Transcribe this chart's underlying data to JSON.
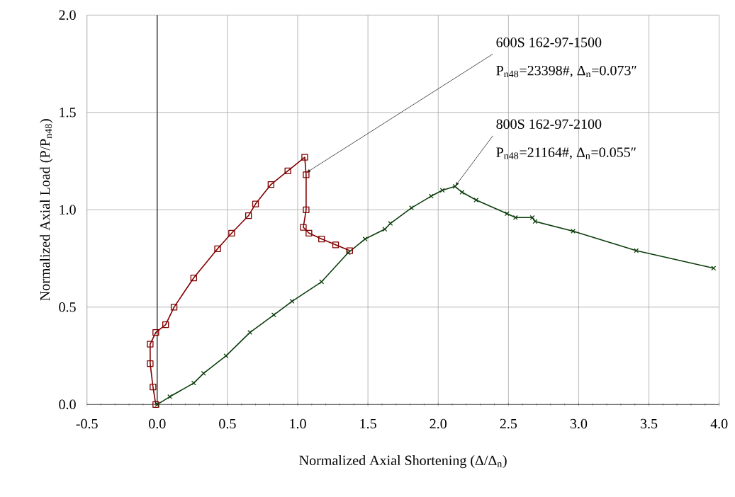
{
  "chart_data": {
    "type": "line",
    "xlabel": "Normalized Axial Shortening (Δ/Δ$_{n}$)",
    "ylabel": "Normalized Axial Load (P/P$_{n48}$)",
    "xlim": [
      -0.5,
      4.0
    ],
    "ylim": [
      0,
      2.0
    ],
    "xticks": [
      {
        "value": -0.5,
        "label": "-0.5"
      },
      {
        "value": 0,
        "label": "0.0"
      },
      {
        "value": 0.5,
        "label": "0.5"
      },
      {
        "value": 1.0,
        "label": "1.0"
      },
      {
        "value": 1.5,
        "label": "1.5"
      },
      {
        "value": 2.0,
        "label": "2.0"
      },
      {
        "value": 2.5,
        "label": "2.5"
      },
      {
        "value": 3.0,
        "label": "3.0"
      },
      {
        "value": 3.5,
        "label": "3.5"
      },
      {
        "value": 4.0,
        "label": "4.0"
      }
    ],
    "yticks": [
      {
        "value": 0,
        "label": "0.0"
      },
      {
        "value": 0.5,
        "label": "0.5"
      },
      {
        "value": 1.0,
        "label": "1.0"
      },
      {
        "value": 1.5,
        "label": "1.5"
      },
      {
        "value": 2.0,
        "label": "2.0"
      }
    ],
    "grid": true,
    "series": [
      {
        "color": "#7f0000",
        "marker": "square",
        "x": [
          -0.01,
          -0.03,
          -0.05,
          -0.05,
          -0.01,
          0.06,
          0.12,
          0.26,
          0.43,
          0.53,
          0.65,
          0.7,
          0.81,
          0.93,
          1.05,
          1.06,
          1.06,
          1.04,
          1.08,
          1.17,
          1.27,
          1.37
        ],
        "values": [
          0,
          0.09,
          0.21,
          0.31,
          0.37,
          0.41,
          0.5,
          0.65,
          0.8,
          0.88,
          0.97,
          1.03,
          1.13,
          1.2,
          1.27,
          1.18,
          1.0,
          0.91,
          0.88,
          0.85,
          0.82,
          0.79
        ]
      },
      {
        "color": "#0b3d0b",
        "marker": "cross",
        "x": [
          0,
          0.09,
          0.26,
          0.33,
          0.49,
          0.66,
          0.83,
          0.96,
          1.17,
          1.36,
          1.48,
          1.62,
          1.66,
          1.81,
          1.95,
          2.03,
          2.12,
          2.17,
          2.27,
          2.49,
          2.55,
          2.67,
          2.69,
          2.96,
          3.41,
          3.96
        ],
        "values": [
          0,
          0.04,
          0.11,
          0.16,
          0.25,
          0.37,
          0.46,
          0.53,
          0.63,
          0.78,
          0.85,
          0.9,
          0.93,
          1.01,
          1.07,
          1.1,
          1.12,
          1.09,
          1.05,
          0.98,
          0.96,
          0.96,
          0.94,
          0.89,
          0.79,
          0.7
        ]
      }
    ],
    "annotations": [
      {
        "text": "600S 162-97-1500",
        "x": 1.06,
        "y": 1.19
      },
      "P$_{n48}$=23398#, Δ$_{n}$=0.073″",
      {
        "text": "800S 162-97-2100",
        "x": 2.12,
        "y": 1.12
      },
      "P$_{n48}$=21164#, Δ$_{n}$=0.055″"
    ]
  }
}
